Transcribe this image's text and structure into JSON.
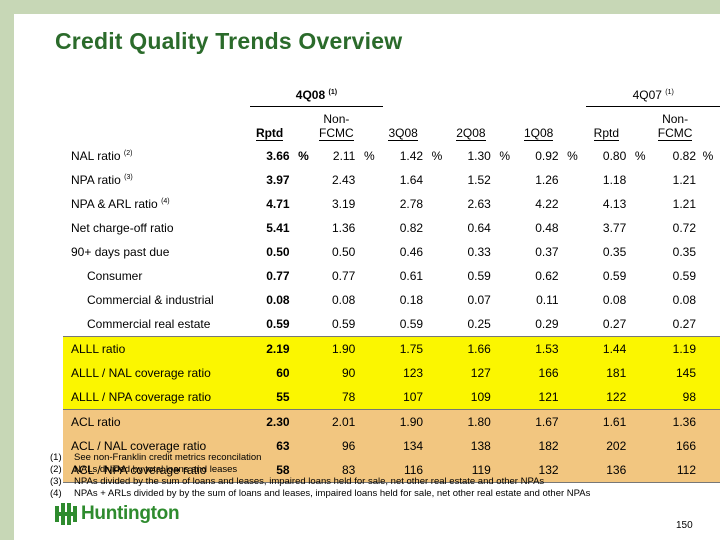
{
  "title": "Credit Quality Trends Overview",
  "header": {
    "group1": "4Q08",
    "group1_note": "(1)",
    "group2": "4Q07",
    "group2_note": "(1)",
    "columns": [
      "Rptd",
      "Non-\nFCMC",
      "3Q08",
      "2Q08",
      "1Q08",
      "Rptd",
      "Non-\nFCMC"
    ],
    "col_nonfcmc_a": "Non-",
    "col_nonfcmc_b": "FCMC"
  },
  "rows": [
    {
      "label": "NAL ratio",
      "note": "(2)",
      "values": [
        "3.66",
        "2.11",
        "1.42",
        "1.30",
        "0.92",
        "0.80",
        "0.82"
      ],
      "pct": "%"
    },
    {
      "label": "NPA ratio",
      "note": "(3)",
      "values": [
        "3.97",
        "2.43",
        "1.64",
        "1.52",
        "1.26",
        "1.18",
        "1.21"
      ]
    },
    {
      "label": "NPA & ARL ratio",
      "note": "(4)",
      "values": [
        "4.71",
        "3.19",
        "2.78",
        "2.63",
        "4.22",
        "4.13",
        "1.21"
      ]
    },
    {
      "label": "Net charge-off ratio",
      "values": [
        "5.41",
        "1.36",
        "0.82",
        "0.64",
        "0.48",
        "3.77",
        "0.72"
      ]
    },
    {
      "label": "90+ days past due",
      "values": [
        "0.50",
        "0.50",
        "0.46",
        "0.33",
        "0.37",
        "0.35",
        "0.35"
      ]
    },
    {
      "label": "Consumer",
      "values": [
        "0.77",
        "0.77",
        "0.61",
        "0.59",
        "0.62",
        "0.59",
        "0.59"
      ]
    },
    {
      "label": "Commercial & industrial",
      "values": [
        "0.08",
        "0.08",
        "0.18",
        "0.07",
        "0.11",
        "0.08",
        "0.08"
      ]
    },
    {
      "label": "Commercial real estate",
      "values": [
        "0.59",
        "0.59",
        "0.59",
        "0.25",
        "0.29",
        "0.27",
        "0.27"
      ]
    },
    {
      "label": "ALLL ratio",
      "values": [
        "2.19",
        "1.90",
        "1.75",
        "1.66",
        "1.53",
        "1.44",
        "1.19"
      ]
    },
    {
      "label": "ALLL / NAL coverage ratio",
      "values": [
        "60",
        "90",
        "123",
        "127",
        "166",
        "181",
        "145"
      ]
    },
    {
      "label": "ALLL / NPA coverage ratio",
      "values": [
        "55",
        "78",
        "107",
        "109",
        "121",
        "122",
        "98"
      ]
    },
    {
      "label": "ACL ratio",
      "values": [
        "2.30",
        "2.01",
        "1.90",
        "1.80",
        "1.67",
        "1.61",
        "1.36"
      ]
    },
    {
      "label": "ACL / NAL coverage ratio",
      "values": [
        "63",
        "96",
        "134",
        "138",
        "182",
        "202",
        "166"
      ]
    },
    {
      "label": "ACL / NPA coverage ratio",
      "values": [
        "58",
        "83",
        "116",
        "119",
        "132",
        "136",
        "112"
      ]
    }
  ],
  "footnotes": [
    {
      "num": "(1)",
      "text": "See non-Franklin credit metrics reconcilation"
    },
    {
      "num": "(2)",
      "text": "NALs divided by total loans and leases"
    },
    {
      "num": "(3)",
      "text": "NPAs divided by the sum of loans and leases, impaired loans held for sale, net other real estate and other NPAs"
    },
    {
      "num": "(4)",
      "text": "NPAs + ARLs divided by by the sum of loans and leases, impaired loans held for sale, net other real estate and other NPAs"
    }
  ],
  "logo": {
    "text": "Huntington"
  },
  "page_number": "150",
  "colors": {
    "title_green": "#2b6b2b",
    "yellow_band": "#fbf600",
    "tan_band": "#f2c680",
    "frame": "#c7d7b6",
    "logo_green": "#2e8b2e"
  }
}
